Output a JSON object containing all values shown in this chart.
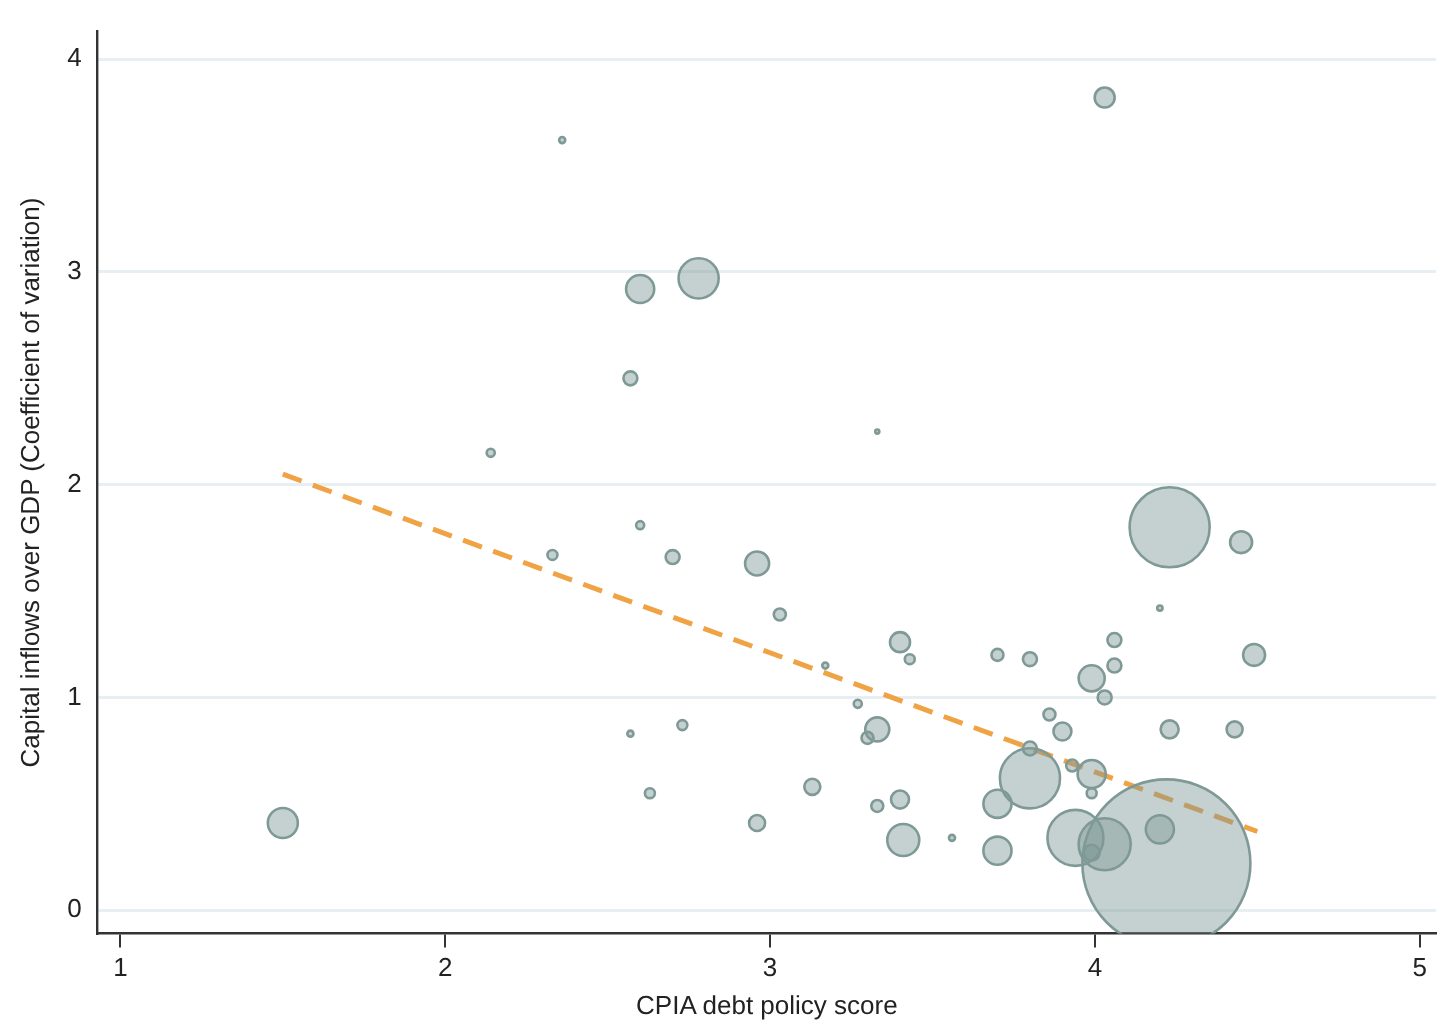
{
  "chart_data": {
    "type": "bubble",
    "xlabel": "CPIA debt policy score",
    "ylabel": "Capital inflows over GDP (Coefficient of variation)",
    "xlim": [
      0.93,
      5.05
    ],
    "ylim": [
      -0.11,
      4.13
    ],
    "xticks": [
      1,
      2,
      3,
      4,
      5
    ],
    "yticks": [
      0,
      1,
      2,
      3,
      4
    ],
    "grid": "y",
    "legend": false,
    "series": [
      {
        "type": "bubble",
        "color": "#7f9a96",
        "marker": "circle",
        "x": [
          2.36,
          2.6,
          2.78,
          2.57,
          2.14,
          4.03,
          3.33,
          4.23,
          4.45,
          2.33,
          2.7,
          2.96,
          2.6,
          3.03,
          4.2,
          3.4,
          3.43,
          3.17,
          3.7,
          3.8,
          4.06,
          4.06,
          4.49,
          3.99,
          4.03,
          3.27,
          3.86,
          3.33,
          3.3,
          3.9,
          4.23,
          4.43,
          3.8,
          3.8,
          3.93,
          3.99,
          3.99,
          3.13,
          3.4,
          3.33,
          3.7,
          2.96,
          2.73,
          2.57,
          2.63,
          1.5,
          3.41,
          3.56,
          3.7,
          3.94,
          4.03,
          3.99,
          4.22,
          4.2
        ],
        "values": [
          3.62,
          2.92,
          2.97,
          2.5,
          2.15,
          3.82,
          2.25,
          1.8,
          1.73,
          1.67,
          1.66,
          1.63,
          1.81,
          1.39,
          1.42,
          1.26,
          1.18,
          1.15,
          1.2,
          1.18,
          1.27,
          1.15,
          1.2,
          1.09,
          1.0,
          0.97,
          0.92,
          0.85,
          0.81,
          0.84,
          0.85,
          0.85,
          0.76,
          0.62,
          0.68,
          0.64,
          0.55,
          0.58,
          0.52,
          0.49,
          0.5,
          0.41,
          0.87,
          0.83,
          0.55,
          0.41,
          0.33,
          0.34,
          0.28,
          0.34,
          0.31,
          0.27,
          0.22,
          0.38
        ],
        "sizes": [
          0.0013,
          0.028,
          0.057,
          0.0069,
          0.0023,
          0.0142,
          0.0006,
          0.227,
          0.0171,
          0.0035,
          0.0069,
          0.0204,
          0.0023,
          0.0051,
          0.001,
          0.0142,
          0.0035,
          0.0013,
          0.0051,
          0.0069,
          0.0069,
          0.0069,
          0.0171,
          0.024,
          0.0069,
          0.0023,
          0.0051,
          0.0204,
          0.0051,
          0.0115,
          0.0115,
          0.0091,
          0.0069,
          0.128,
          0.0051,
          0.028,
          0.0035,
          0.0091,
          0.0115,
          0.0051,
          0.028,
          0.0091,
          0.0035,
          0.0013,
          0.0035,
          0.0319,
          0.0363,
          0.0013,
          0.028,
          0.111,
          0.096,
          0.0091,
          1,
          0.028
        ]
      },
      {
        "type": "line",
        "color": "#f0a345",
        "line_style": "dashed",
        "marker": "none",
        "x": [
          1.5,
          4.5
        ],
        "values": [
          2.05,
          0.37
        ]
      }
    ]
  }
}
